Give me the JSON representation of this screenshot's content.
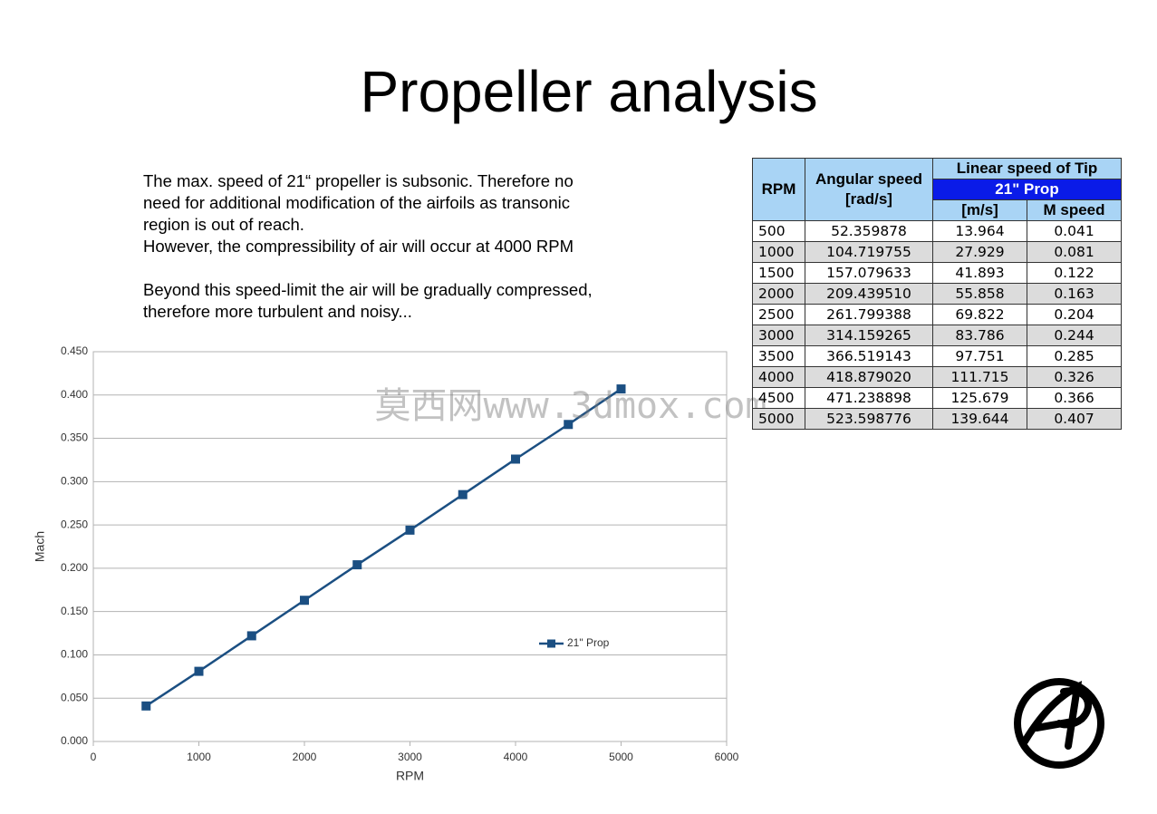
{
  "title": "Propeller analysis",
  "paragraphs": [
    [
      "The max. speed of 21“ propeller is subsonic. Therefore no",
      "need for additional modification of the airfoils as transonic",
      "region is out of reach.",
      "However, the compressibility of air will occur at 4000 RPM"
    ],
    [
      "Beyond this speed-limit the air will be gradually compressed,",
      "therefore more turbulent and noisy..."
    ]
  ],
  "watermark": "莫西网www.3dmox.com",
  "table": {
    "header": {
      "rpm": "RPM",
      "angular": "Angular speed [rad/s]",
      "linear": "Linear speed of Tip",
      "prop": "21\" Prop",
      "ms": "[m/s]",
      "mach": "M speed"
    },
    "rows": [
      [
        "500",
        "52.359878",
        "13.964",
        "0.041"
      ],
      [
        "1000",
        "104.719755",
        "27.929",
        "0.081"
      ],
      [
        "1500",
        "157.079633",
        "41.893",
        "0.122"
      ],
      [
        "2000",
        "209.439510",
        "55.858",
        "0.163"
      ],
      [
        "2500",
        "261.799388",
        "69.822",
        "0.204"
      ],
      [
        "3000",
        "314.159265",
        "83.786",
        "0.244"
      ],
      [
        "3500",
        "366.519143",
        "97.751",
        "0.285"
      ],
      [
        "4000",
        "418.879020",
        "111.715",
        "0.326"
      ],
      [
        "4500",
        "471.238898",
        "125.679",
        "0.366"
      ],
      [
        "5000",
        "523.598776",
        "139.644",
        "0.407"
      ]
    ]
  },
  "chart_data": {
    "type": "line",
    "x_label": "RPM",
    "y_label": "Mach",
    "x": [
      500,
      1000,
      1500,
      2000,
      2500,
      3000,
      3500,
      4000,
      4500,
      5000
    ],
    "series": [
      {
        "name": "21\" Prop",
        "color": "#1b4f82",
        "values": [
          0.041,
          0.081,
          0.122,
          0.163,
          0.204,
          0.244,
          0.285,
          0.326,
          0.366,
          0.407
        ]
      }
    ],
    "xlim": [
      0,
      6000
    ],
    "xticks": [
      0,
      1000,
      2000,
      3000,
      4000,
      5000,
      6000
    ],
    "ylim": [
      0,
      0.45
    ],
    "yticks": [
      {
        "value": 0,
        "label": "0.000"
      },
      {
        "value": 0.05,
        "label": "0.050"
      },
      {
        "value": 0.1,
        "label": "0.100"
      },
      {
        "value": 0.15,
        "label": "0.150"
      },
      {
        "value": 0.2,
        "label": "0.200"
      },
      {
        "value": 0.25,
        "label": "0.250"
      },
      {
        "value": 0.3,
        "label": "0.300"
      },
      {
        "value": 0.35,
        "label": "0.350"
      },
      {
        "value": 0.4,
        "label": "0.400"
      },
      {
        "value": 0.45,
        "label": "0.450"
      }
    ],
    "grid": true,
    "legend": "right"
  }
}
